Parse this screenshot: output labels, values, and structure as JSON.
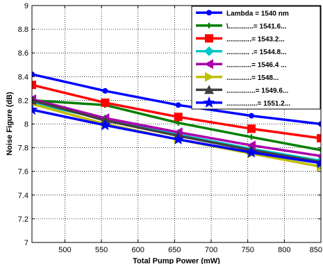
{
  "chart_data": {
    "type": "line",
    "xlabel": "Total Pump Power (mW)",
    "ylabel": "Noise Figure (dB)",
    "xlim": [
      455,
      850
    ],
    "ylim": [
      7,
      9
    ],
    "xticks": [
      "500",
      "550",
      "600",
      "650",
      "700",
      "750",
      "800",
      "850"
    ],
    "yticks": [
      "7",
      "7.2",
      "7.4",
      "7.6",
      "7.8",
      "8",
      "8.2",
      "8.4",
      "8.6",
      "8.8",
      "9"
    ],
    "grid": true,
    "legend_position": "top-right",
    "x": [
      455,
      555,
      655,
      755,
      850
    ],
    "series": [
      {
        "name": "Lambda = 1540 nm",
        "color": "#0000ff",
        "marker": "circle",
        "values": [
          8.42,
          8.28,
          8.16,
          8.07,
          8.0
        ]
      },
      {
        "name": "\\.............= 1541.6...",
        "color": "#008000",
        "marker": "plus",
        "values": [
          8.2,
          8.16,
          8.01,
          7.89,
          7.78
        ]
      },
      {
        "name": ".............= 1543.2...",
        "color": "#ff0000",
        "marker": "square",
        "values": [
          8.33,
          8.18,
          8.06,
          7.96,
          7.88
        ]
      },
      {
        "name": "............ .= 1544.8...",
        "color": "#00c8c8",
        "marker": "diamond",
        "values": [
          8.18,
          8.04,
          7.91,
          7.79,
          7.69
        ]
      },
      {
        "name": ".............= 1546.4 ...",
        "color": "#aa00aa",
        "marker": "triangle-left",
        "values": [
          8.21,
          8.05,
          7.93,
          7.82,
          7.73
        ]
      },
      {
        "name": ".............= 1548...",
        "color": "#bfbf00",
        "marker": "triangle-right",
        "values": [
          8.17,
          8.0,
          7.87,
          7.75,
          7.64
        ]
      },
      {
        "name": "...............= 1549.6...",
        "color": "#404040",
        "marker": "triangle-up",
        "values": [
          8.2,
          8.03,
          7.9,
          7.78,
          7.68
        ]
      },
      {
        "name": "................= 1551.2...",
        "color": "#0000ff",
        "marker": "star",
        "values": [
          8.12,
          7.99,
          7.87,
          7.76,
          7.67
        ]
      }
    ]
  }
}
